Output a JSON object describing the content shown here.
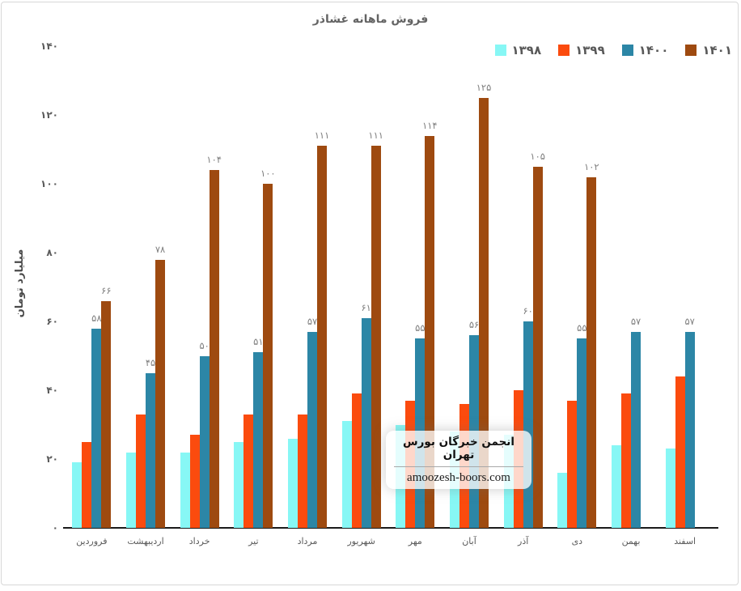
{
  "chart_data": {
    "type": "bar",
    "title": "فروش ماهانه غشاذر",
    "ylabel": "میلیارد تومان",
    "xlabel": "",
    "ylim": [
      0,
      140
    ],
    "ytick_step": 20,
    "yticks_fa": [
      "۰",
      "۲۰",
      "۴۰",
      "۶۰",
      "۸۰",
      "۱۰۰",
      "۱۲۰",
      "۱۴۰"
    ],
    "grid": false,
    "legend_position": "top-right",
    "categories": [
      "فروردین",
      "اردیبهشت",
      "خرداد",
      "تیر",
      "مرداد",
      "شهریور",
      "مهر",
      "آبان",
      "آذر",
      "دی",
      "بهمن",
      "اسفند"
    ],
    "series": [
      {
        "name": "۱۳۹۸",
        "color": "#87f7f5",
        "values": [
          19,
          22,
          22,
          25,
          26,
          31,
          30,
          28,
          27,
          16,
          24,
          23
        ],
        "labels_fa": null
      },
      {
        "name": "۱۳۹۹",
        "color": "#fb4b0e",
        "values": [
          25,
          33,
          27,
          33,
          33,
          39,
          37,
          36,
          40,
          37,
          39,
          44
        ],
        "labels_fa": null
      },
      {
        "name": "۱۴۰۰",
        "color": "#2c86a6",
        "values": [
          58,
          45,
          50,
          51,
          57,
          61,
          55,
          56,
          60,
          55,
          57,
          57
        ],
        "labels_fa": [
          "۵۸",
          "۴۵",
          "۵۰",
          "۵۱",
          "۵۷",
          "۶۱",
          "۵۵",
          "۵۶",
          "۶۰",
          "۵۵",
          "۵۷",
          "۵۷"
        ]
      },
      {
        "name": "۱۴۰۱",
        "color": "#9e4a10",
        "values": [
          66,
          78,
          104,
          100,
          111,
          111,
          114,
          125,
          105,
          102,
          null,
          null
        ],
        "labels_fa": [
          "۶۶",
          "۷۸",
          "۱۰۴",
          "۱۰۰",
          "۱۱۱",
          "۱۱۱",
          "۱۱۴",
          "۱۲۵",
          "۱۰۵",
          "۱۰۲",
          null,
          null
        ]
      }
    ],
    "colors": {
      "text": "#595959",
      "data_label": "#7f7f7f",
      "axis_line": "#1a1a1a"
    }
  },
  "watermark": {
    "line1": "انجمن خبرگان بورس تهران",
    "line2": "amoozesh-boors.com"
  }
}
